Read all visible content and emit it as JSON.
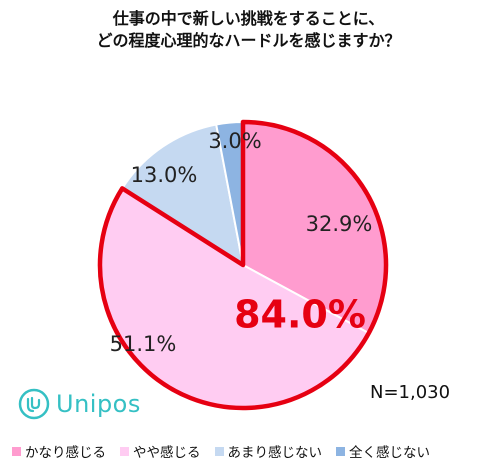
{
  "title_lines": [
    "仕事の中で新しい挑戦をすることに、",
    "どの程度心理的なハードルを感じますか？"
  ],
  "chart_data": {
    "type": "pie",
    "title": "仕事の中で新しい挑戦をすることに、どの程度心理的なハードルを感じますか？",
    "unit": "%",
    "slices": [
      {
        "label": "かなり感じる",
        "value": 32.9,
        "display": "32.9%",
        "color": "#ff9ccf"
      },
      {
        "label": "やや感じる",
        "value": 51.1,
        "display": "51.1%",
        "color": "#ffccf2"
      },
      {
        "label": "あまり感じない",
        "value": 13.0,
        "display": "13.0%",
        "color": "#c5d9f1"
      },
      {
        "label": "全く感じない",
        "value": 3.0,
        "display": "3.0%",
        "color": "#8db4e2"
      }
    ],
    "highlight": {
      "text": "84.0%",
      "value": 84.0,
      "color": "#e60012"
    },
    "sample_size": "N=1,030",
    "legend_position": "bottom"
  },
  "brand": {
    "name": "Unipos",
    "color": "#35c0c4"
  }
}
